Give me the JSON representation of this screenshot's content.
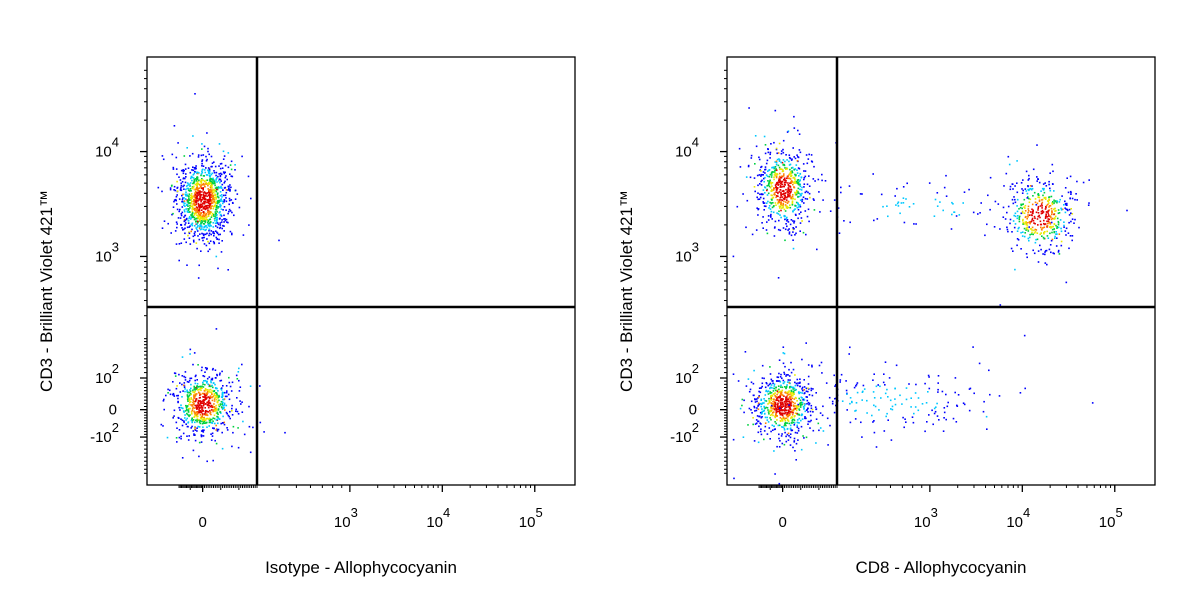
{
  "chart_data": [
    {
      "type": "scatter",
      "xlabel": "Isotype - Allophycocyanin",
      "ylabel": "CD3 - Brilliant Violet 421™",
      "x_scale": "biexponential",
      "y_scale": "biexponential",
      "x_ticks": [
        {
          "value": 0,
          "base": "0",
          "exp": ""
        },
        {
          "value": 1000,
          "base": "10",
          "exp": "3"
        },
        {
          "value": 10000,
          "base": "10",
          "exp": "4"
        },
        {
          "value": 100000,
          "base": "10",
          "exp": "5"
        }
      ],
      "y_ticks": [
        {
          "value": -100,
          "base": "-10",
          "exp": "2"
        },
        {
          "value": 0,
          "base": "0",
          "exp": ""
        },
        {
          "value": 100,
          "base": "10",
          "exp": "2"
        },
        {
          "value": 1000,
          "base": "10",
          "exp": "3"
        },
        {
          "value": 10000,
          "base": "10",
          "exp": "4"
        }
      ],
      "quadrant_gate": {
        "x": 300,
        "y": 350
      },
      "populations": [
        {
          "name": "",
          "x_center": 0,
          "y_center": 3500,
          "count": 1100
        },
        {
          "name": "",
          "x_center": 0,
          "y_center": 20,
          "count": 700
        }
      ],
      "density_colormap": [
        "#0000ff",
        "#00c8ff",
        "#00d040",
        "#e8e800",
        "#ff8000",
        "#e00000"
      ]
    },
    {
      "type": "scatter",
      "xlabel": "CD8 - Allophycocyanin",
      "ylabel": "CD3 - Brilliant Violet 421™",
      "x_scale": "biexponential",
      "y_scale": "biexponential",
      "x_ticks": [
        {
          "value": 0,
          "base": "0",
          "exp": ""
        },
        {
          "value": 1000,
          "base": "10",
          "exp": "3"
        },
        {
          "value": 10000,
          "base": "10",
          "exp": "4"
        },
        {
          "value": 100000,
          "base": "10",
          "exp": "5"
        }
      ],
      "y_ticks": [
        {
          "value": -100,
          "base": "-10",
          "exp": "2"
        },
        {
          "value": 0,
          "base": "0",
          "exp": ""
        },
        {
          "value": 100,
          "base": "10",
          "exp": "2"
        },
        {
          "value": 1000,
          "base": "10",
          "exp": "3"
        },
        {
          "value": 10000,
          "base": "10",
          "exp": "4"
        }
      ],
      "quadrant_gate": {
        "x": 300,
        "y": 350
      },
      "populations": [
        {
          "name": "",
          "x_center": 0,
          "y_center": 4500,
          "count": 650
        },
        {
          "name": "",
          "x_center": 15000,
          "y_center": 2500,
          "count": 450
        },
        {
          "name": "",
          "x_center": 0,
          "y_center": 15,
          "count": 750
        },
        {
          "name": "",
          "x_center": 800,
          "y_center": 3000,
          "count": 90
        },
        {
          "name": "",
          "x_center": 600,
          "y_center": 30,
          "count": 180
        }
      ],
      "density_colormap": [
        "#0000ff",
        "#00c8ff",
        "#00d040",
        "#e8e800",
        "#ff8000",
        "#e00000"
      ]
    }
  ]
}
